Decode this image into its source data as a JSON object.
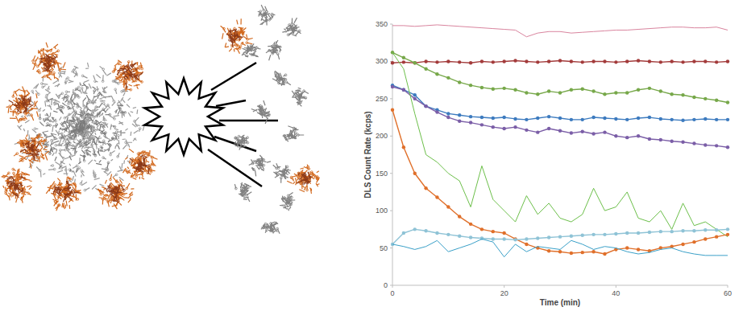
{
  "chart_data": {
    "type": "line",
    "x_label": "Time (min)",
    "y_label": "DLS Count Rate (kcps)",
    "xlim": [
      0,
      60
    ],
    "ylim": [
      0,
      350
    ],
    "xticks": [
      0,
      20,
      40,
      60
    ],
    "yticks": [
      0,
      50,
      100,
      150,
      200,
      250,
      300,
      350
    ],
    "grid": false,
    "x": [
      0,
      2,
      4,
      6,
      8,
      10,
      12,
      14,
      16,
      18,
      20,
      22,
      24,
      26,
      28,
      30,
      32,
      34,
      36,
      38,
      40,
      42,
      44,
      46,
      48,
      50,
      52,
      54,
      56,
      58,
      60
    ],
    "series": [
      {
        "color": "#d9849e",
        "marker": "none",
        "values": [
          348,
          348,
          347,
          348,
          349,
          348,
          347,
          346,
          345,
          344,
          343,
          342,
          333,
          338,
          340,
          340,
          338,
          339,
          340,
          341,
          342,
          342,
          343,
          344,
          345,
          346,
          346,
          345,
          345,
          346,
          342
        ]
      },
      {
        "color": "#a33b3b",
        "marker": "circle",
        "values": [
          298,
          299,
          298,
          300,
          299,
          300,
          299,
          298,
          300,
          299,
          300,
          301,
          300,
          299,
          300,
          301,
          300,
          299,
          300,
          300,
          299,
          300,
          301,
          300,
          299,
          300,
          299,
          300,
          300,
          299,
          300
        ]
      },
      {
        "color": "#77a84a",
        "marker": "circle",
        "values": [
          312,
          305,
          298,
          290,
          283,
          278,
          272,
          268,
          265,
          263,
          264,
          262,
          258,
          256,
          260,
          258,
          262,
          263,
          260,
          256,
          258,
          258,
          262,
          264,
          260,
          256,
          255,
          252,
          250,
          248,
          245
        ]
      },
      {
        "color": "#3d7bbf",
        "marker": "circle",
        "values": [
          268,
          262,
          255,
          240,
          235,
          230,
          228,
          226,
          225,
          224,
          225,
          223,
          222,
          224,
          226,
          224,
          222,
          222,
          225,
          224,
          223,
          222,
          224,
          225,
          223,
          222,
          221,
          222,
          223,
          222,
          222
        ]
      },
      {
        "color": "#7b5ea7",
        "marker": "circle",
        "values": [
          266,
          262,
          250,
          240,
          232,
          225,
          220,
          218,
          215,
          212,
          210,
          212,
          208,
          205,
          210,
          207,
          204,
          206,
          203,
          205,
          200,
          198,
          200,
          196,
          195,
          193,
          192,
          190,
          188,
          187,
          185
        ]
      },
      {
        "color": "#6cbf4a",
        "marker": "none",
        "values": [
          312,
          290,
          230,
          175,
          165,
          150,
          140,
          105,
          160,
          115,
          100,
          85,
          120,
          95,
          110,
          90,
          85,
          95,
          130,
          100,
          105,
          125,
          90,
          85,
          100,
          75,
          110,
          80,
          85,
          75,
          65
        ]
      },
      {
        "color": "#e0702b",
        "marker": "circle",
        "values": [
          235,
          185,
          150,
          130,
          118,
          105,
          92,
          82,
          75,
          72,
          70,
          62,
          55,
          50,
          46,
          45,
          43,
          44,
          45,
          42,
          48,
          50,
          48,
          46,
          50,
          52,
          55,
          58,
          62,
          65,
          68
        ]
      },
      {
        "color": "#8fc3d6",
        "marker": "circle",
        "values": [
          55,
          70,
          75,
          73,
          70,
          68,
          66,
          64,
          63,
          62,
          62,
          61,
          62,
          63,
          64,
          65,
          66,
          67,
          68,
          68,
          69,
          70,
          70,
          71,
          72,
          72,
          73,
          73,
          74,
          74,
          75
        ]
      },
      {
        "color": "#3aa0c8",
        "marker": "none",
        "values": [
          55,
          52,
          48,
          52,
          60,
          45,
          50,
          55,
          62,
          58,
          38,
          55,
          45,
          52,
          50,
          48,
          60,
          55,
          48,
          52,
          50,
          45,
          42,
          44,
          48,
          50,
          45,
          42,
          40,
          40,
          40
        ]
      }
    ]
  }
}
